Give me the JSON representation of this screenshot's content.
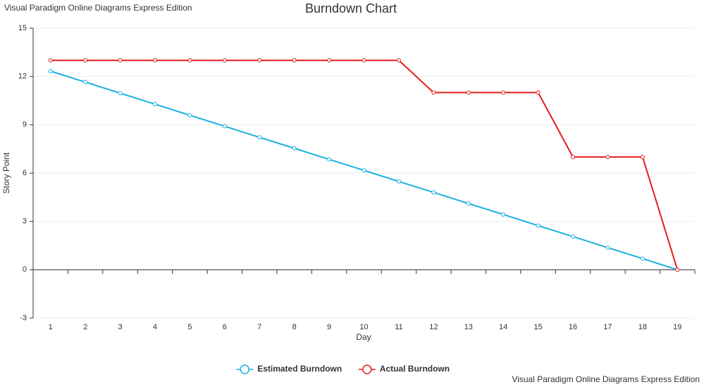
{
  "chart_data": {
    "type": "line",
    "title": "Burndown Chart",
    "x_label": "Day",
    "y_label": "Story Point",
    "annotations": [
      "Visual Paradigm Online Diagrams Express Edition",
      "Visual Paradigm Online Diagrams Express Edition"
    ],
    "categories": [
      "1",
      "2",
      "3",
      "4",
      "5",
      "6",
      "7",
      "8",
      "9",
      "10",
      "11",
      "12",
      "13",
      "14",
      "15",
      "16",
      "17",
      "18",
      "19"
    ],
    "series": [
      {
        "name": "Estimated Burndown",
        "color": "#1ab0e2",
        "values": [
          12.33,
          11.65,
          10.96,
          10.28,
          9.59,
          8.91,
          8.22,
          7.54,
          6.85,
          6.17,
          5.48,
          4.8,
          4.11,
          3.43,
          2.74,
          2.06,
          1.37,
          0.69,
          0
        ]
      },
      {
        "name": "Actual Burndown",
        "color": "#e51c1c",
        "values": [
          13,
          13,
          13,
          13,
          13,
          13,
          13,
          13,
          13,
          13,
          13,
          11,
          11,
          11,
          11,
          7,
          7,
          7,
          0
        ]
      }
    ],
    "ylim": [
      -3,
      15
    ],
    "yticks": [
      -3,
      0,
      3,
      6,
      9,
      12,
      15
    ],
    "grid": true,
    "legend": "bottom"
  }
}
